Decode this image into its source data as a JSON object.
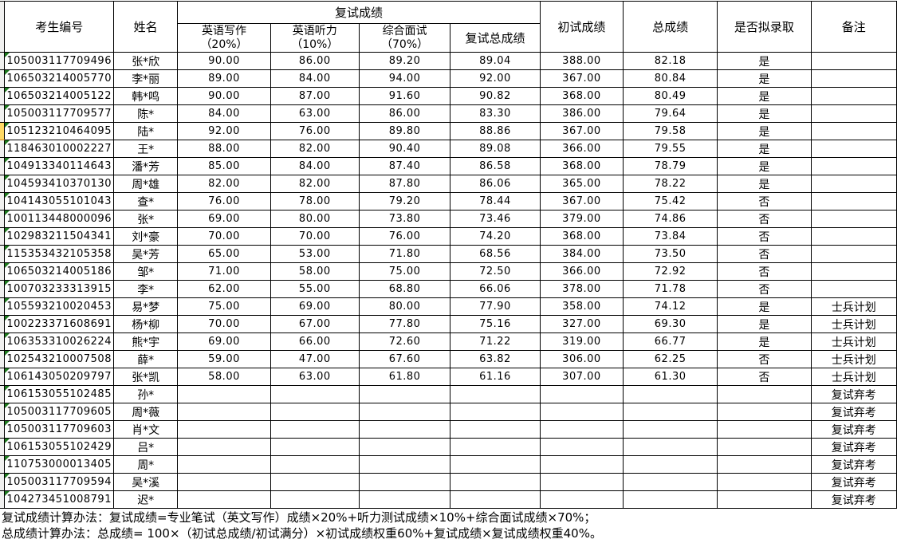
{
  "spreadsheet": {
    "header": {
      "candidate_id": "考生编号",
      "name": "姓名",
      "retest_group": "复试成绩",
      "writing_line1": "英语写作",
      "writing_line2": "（20%）",
      "listening_line1": "英语听力",
      "listening_line2": "（10%）",
      "interview_line1": "综合面试",
      "interview_line2": "（70%）",
      "retest_total": "复试总成绩",
      "initial_score": "初试成绩",
      "total_score": "总成绩",
      "admit": "是否拟录取",
      "remark": "备注"
    },
    "rows": [
      {
        "id": "105003117709496",
        "name": "张*欣",
        "writing": "90.00",
        "listening": "86.00",
        "interview": "89.20",
        "retest_total": "89.04",
        "initial": "388.00",
        "total": "82.18",
        "admit": "是",
        "remark": ""
      },
      {
        "id": "106503214005770",
        "name": "李*丽",
        "writing": "89.00",
        "listening": "84.00",
        "interview": "94.00",
        "retest_total": "92.00",
        "initial": "367.00",
        "total": "80.84",
        "admit": "是",
        "remark": ""
      },
      {
        "id": "106503214005122",
        "name": "韩*鸣",
        "writing": "90.00",
        "listening": "87.00",
        "interview": "91.60",
        "retest_total": "90.82",
        "initial": "368.00",
        "total": "80.49",
        "admit": "是",
        "remark": ""
      },
      {
        "id": "105003117709577",
        "name": "陈*",
        "writing": "84.00",
        "listening": "63.00",
        "interview": "86.00",
        "retest_total": "83.30",
        "initial": "386.00",
        "total": "79.64",
        "admit": "是",
        "remark": ""
      },
      {
        "id": "105123210464095",
        "name": "陆*",
        "writing": "92.00",
        "listening": "76.00",
        "interview": "89.80",
        "retest_total": "88.86",
        "initial": "367.00",
        "total": "79.58",
        "admit": "是",
        "remark": ""
      },
      {
        "id": "118463010002227",
        "name": "王*",
        "writing": "88.00",
        "listening": "82.00",
        "interview": "90.40",
        "retest_total": "89.08",
        "initial": "366.00",
        "total": "79.55",
        "admit": "是",
        "remark": ""
      },
      {
        "id": "104913340114643",
        "name": "潘*芳",
        "writing": "85.00",
        "listening": "84.00",
        "interview": "87.40",
        "retest_total": "86.58",
        "initial": "368.00",
        "total": "78.79",
        "admit": "是",
        "remark": ""
      },
      {
        "id": "104593410370130",
        "name": "周*雄",
        "writing": "82.00",
        "listening": "82.00",
        "interview": "87.80",
        "retest_total": "86.06",
        "initial": "365.00",
        "total": "78.22",
        "admit": "是",
        "remark": ""
      },
      {
        "id": "104143055101043",
        "name": "查*",
        "writing": "76.00",
        "listening": "78.00",
        "interview": "79.20",
        "retest_total": "78.44",
        "initial": "367.00",
        "total": "75.42",
        "admit": "否",
        "remark": ""
      },
      {
        "id": "100113448000096",
        "name": "张*",
        "writing": "69.00",
        "listening": "80.00",
        "interview": "73.80",
        "retest_total": "73.46",
        "initial": "379.00",
        "total": "74.86",
        "admit": "否",
        "remark": ""
      },
      {
        "id": "102983211504341",
        "name": "刘*豪",
        "writing": "70.00",
        "listening": "70.00",
        "interview": "76.00",
        "retest_total": "74.20",
        "initial": "368.00",
        "total": "73.84",
        "admit": "否",
        "remark": ""
      },
      {
        "id": "115353432105358",
        "name": "吴*芳",
        "writing": "65.00",
        "listening": "53.00",
        "interview": "71.80",
        "retest_total": "68.56",
        "initial": "384.00",
        "total": "73.50",
        "admit": "否",
        "remark": ""
      },
      {
        "id": "106503214005186",
        "name": "邹*",
        "writing": "71.00",
        "listening": "58.00",
        "interview": "75.00",
        "retest_total": "72.50",
        "initial": "366.00",
        "total": "72.92",
        "admit": "否",
        "remark": ""
      },
      {
        "id": "100703233313915",
        "name": "李*",
        "writing": "62.00",
        "listening": "55.00",
        "interview": "68.80",
        "retest_total": "66.06",
        "initial": "378.00",
        "total": "71.78",
        "admit": "否",
        "remark": ""
      },
      {
        "id": "105593210020453",
        "name": "易*梦",
        "writing": "75.00",
        "listening": "69.00",
        "interview": "80.00",
        "retest_total": "77.90",
        "initial": "358.00",
        "total": "74.12",
        "admit": "是",
        "remark": "士兵计划"
      },
      {
        "id": "100223371608691",
        "name": "杨*柳",
        "writing": "70.00",
        "listening": "67.00",
        "interview": "77.80",
        "retest_total": "75.16",
        "initial": "327.00",
        "total": "69.30",
        "admit": "是",
        "remark": "士兵计划"
      },
      {
        "id": "106353310026224",
        "name": "熊*宇",
        "writing": "69.00",
        "listening": "66.00",
        "interview": "72.60",
        "retest_total": "71.22",
        "initial": "319.00",
        "total": "66.77",
        "admit": "是",
        "remark": "士兵计划"
      },
      {
        "id": "102543210007508",
        "name": "薛*",
        "writing": "59.00",
        "listening": "47.00",
        "interview": "67.60",
        "retest_total": "63.82",
        "initial": "306.00",
        "total": "62.25",
        "admit": "否",
        "remark": "士兵计划"
      },
      {
        "id": "106143050209797",
        "name": "张*凯",
        "writing": "58.00",
        "listening": "63.00",
        "interview": "61.80",
        "retest_total": "61.16",
        "initial": "307.00",
        "total": "61.30",
        "admit": "否",
        "remark": "士兵计划"
      },
      {
        "id": "106153055102485",
        "name": "孙*",
        "writing": "",
        "listening": "",
        "interview": "",
        "retest_total": "",
        "initial": "",
        "total": "",
        "admit": "",
        "remark": "复试弃考"
      },
      {
        "id": "105003117709605",
        "name": "周*薇",
        "writing": "",
        "listening": "",
        "interview": "",
        "retest_total": "",
        "initial": "",
        "total": "",
        "admit": "",
        "remark": "复试弃考"
      },
      {
        "id": "105003117709603",
        "name": "肖*文",
        "writing": "",
        "listening": "",
        "interview": "",
        "retest_total": "",
        "initial": "",
        "total": "",
        "admit": "",
        "remark": "复试弃考"
      },
      {
        "id": "106153055102429",
        "name": "吕*",
        "writing": "",
        "listening": "",
        "interview": "",
        "retest_total": "",
        "initial": "",
        "total": "",
        "admit": "",
        "remark": "复试弃考"
      },
      {
        "id": "110753000013405",
        "name": "周*",
        "writing": "",
        "listening": "",
        "interview": "",
        "retest_total": "",
        "initial": "",
        "total": "",
        "admit": "",
        "remark": "复试弃考"
      },
      {
        "id": "105003117709594",
        "name": "吴*溪",
        "writing": "",
        "listening": "",
        "interview": "",
        "retest_total": "",
        "initial": "",
        "total": "",
        "admit": "",
        "remark": "复试弃考"
      },
      {
        "id": "104273451008791",
        "name": "迟*",
        "writing": "",
        "listening": "",
        "interview": "",
        "retest_total": "",
        "initial": "",
        "total": "",
        "admit": "",
        "remark": "复试弃考"
      }
    ],
    "highlight_gutter_row_index": 4,
    "notes": [
      "复试成绩计算办法：复试成绩=专业笔试（英文写作）成绩×20%+听力测试成绩×10%+综合面试成绩×70%；",
      "总成绩计算办法：总成绩= 100×（初试总成绩/初试满分）×初试成绩权重60%+复试成绩×复试成绩权重40%。"
    ],
    "colors": {
      "grid": "#000000",
      "error_indicator": "#1e7a1e",
      "gutter_bg": "#f1f1f0",
      "highlight_fill": "#ffd965",
      "highlight_border": "#d88b28"
    }
  }
}
